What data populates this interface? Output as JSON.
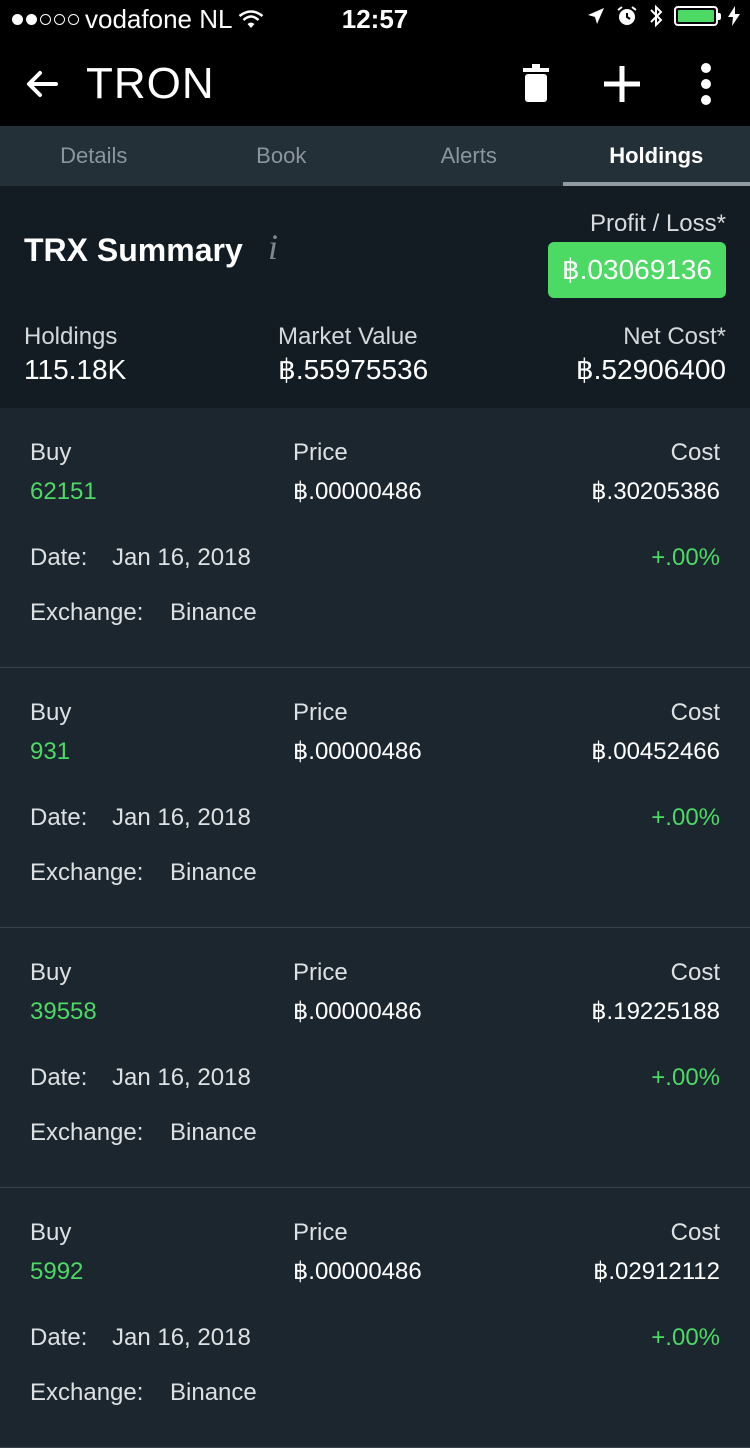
{
  "status_bar": {
    "carrier": "vodafone NL",
    "time": "12:57",
    "colors": {
      "battery": "#4cd964"
    }
  },
  "app_bar": {
    "title": "TRON",
    "icons": [
      "back-arrow-icon",
      "trash-icon",
      "plus-icon",
      "more-vert-icon"
    ]
  },
  "tabs": [
    {
      "label": "Details",
      "active": false
    },
    {
      "label": "Book",
      "active": false
    },
    {
      "label": "Alerts",
      "active": false
    },
    {
      "label": "Holdings",
      "active": true
    }
  ],
  "summary": {
    "title": "TRX Summary",
    "info_glyph": "i",
    "profit_loss_label": "Profit / Loss*",
    "profit_loss_value": "฿.03069136",
    "holdings_label": "Holdings",
    "holdings_value": "115.18K",
    "market_value_label": "Market Value",
    "market_value_value": "฿.55975536",
    "net_cost_label": "Net Cost*",
    "net_cost_value": "฿.52906400",
    "colors": {
      "profit": "#4cd964"
    }
  },
  "holdings_labels": {
    "type": "Buy",
    "price": "Price",
    "cost": "Cost",
    "date": "Date:",
    "exchange": "Exchange:"
  },
  "holdings": [
    {
      "quantity": "62151",
      "price": "฿.00000486",
      "cost": "฿.30205386",
      "date": "Jan 16, 2018",
      "change": "+.00%",
      "exchange": "Binance"
    },
    {
      "quantity": "931",
      "price": "฿.00000486",
      "cost": "฿.00452466",
      "date": "Jan 16, 2018",
      "change": "+.00%",
      "exchange": "Binance"
    },
    {
      "quantity": "39558",
      "price": "฿.00000486",
      "cost": "฿.19225188",
      "date": "Jan 16, 2018",
      "change": "+.00%",
      "exchange": "Binance"
    },
    {
      "quantity": "5992",
      "price": "฿.00000486",
      "cost": "฿.02912112",
      "date": "Jan 16, 2018",
      "change": "+.00%",
      "exchange": "Binance"
    }
  ]
}
